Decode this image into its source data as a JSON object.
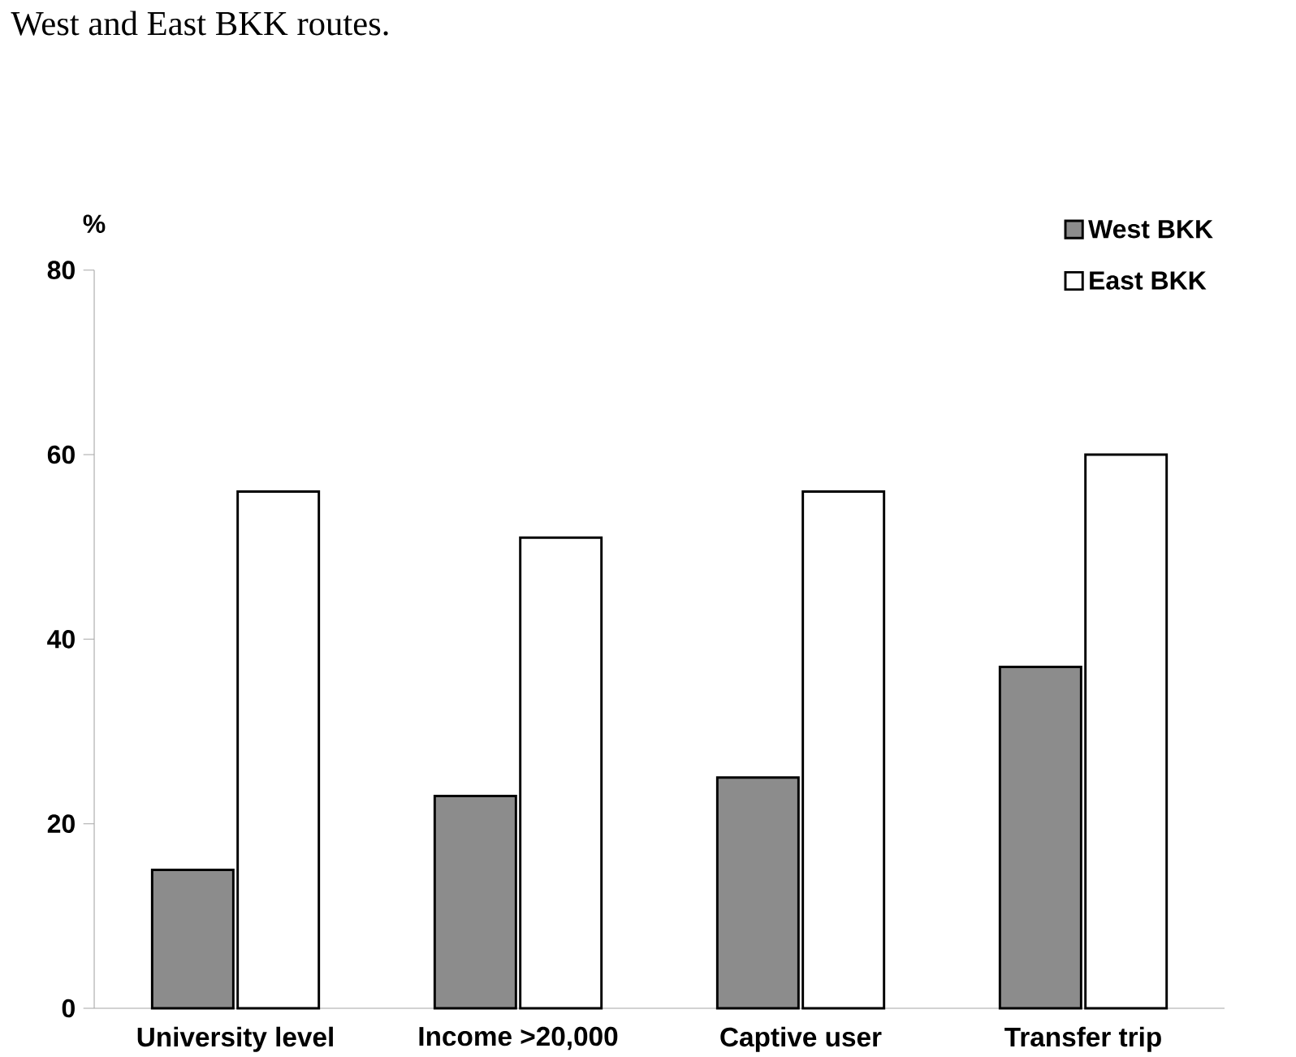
{
  "chart_data": {
    "type": "bar",
    "annotations": [
      "West and East BKK routes."
    ],
    "ylabel": "%",
    "categories": [
      "University level",
      "Income >20,000",
      "Captive user",
      "Transfer trip"
    ],
    "series": [
      {
        "name": "West BKK",
        "color": "#8c8c8c",
        "values": [
          15,
          23,
          25,
          37
        ]
      },
      {
        "name": "East BKK",
        "color": "#ffffff",
        "values": [
          56,
          51,
          56,
          60
        ]
      }
    ],
    "ylim": [
      0,
      80
    ],
    "yticks": [
      0,
      20,
      40,
      60,
      80
    ],
    "grid": false,
    "legend": "top right"
  }
}
